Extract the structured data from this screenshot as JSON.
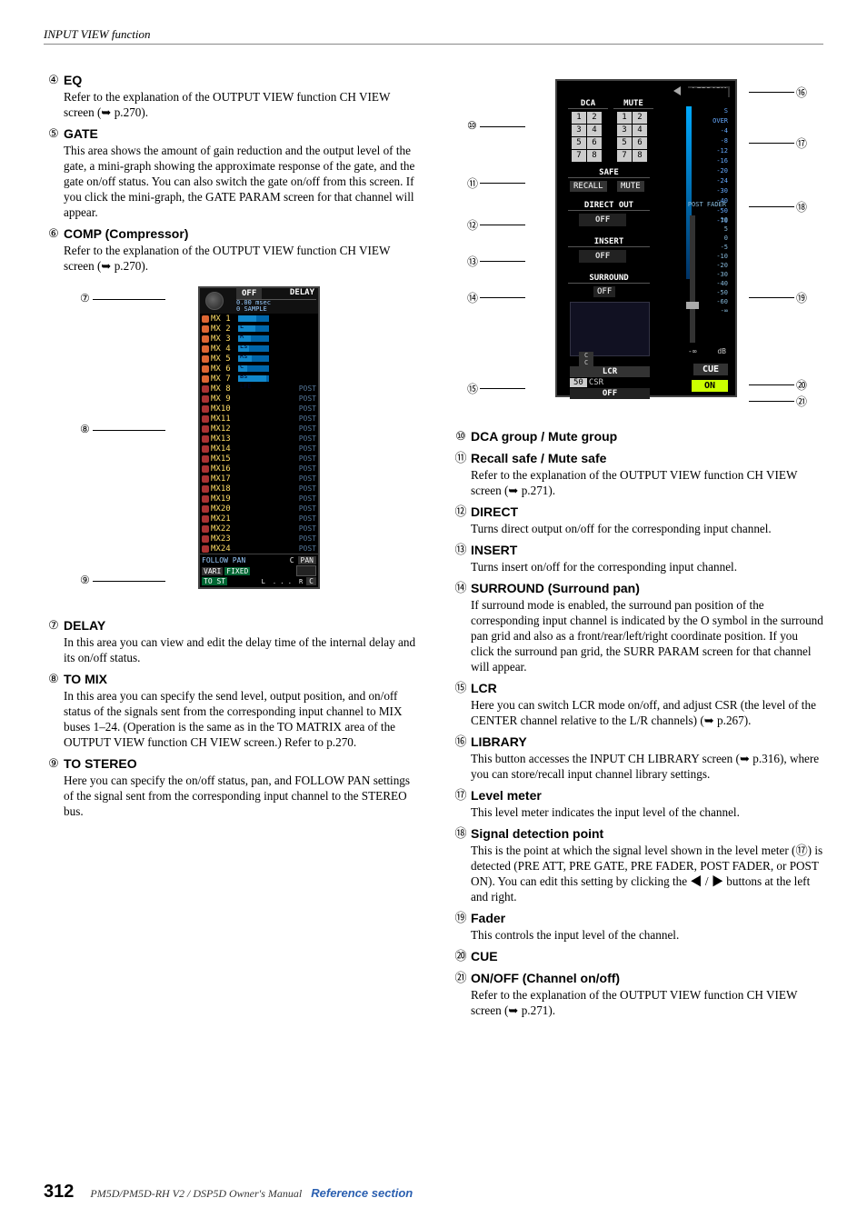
{
  "header": "INPUT VIEW function",
  "footer": {
    "page": "312",
    "manual": "PM5D/PM5D-RH V2 / DSP5D Owner's Manual",
    "section": "Reference section"
  },
  "left_items": [
    {
      "num": "④",
      "title": "EQ",
      "body": "Refer to the explanation of the OUTPUT VIEW function CH VIEW screen (➥ p.270)."
    },
    {
      "num": "⑤",
      "title": "GATE",
      "body": "This area shows the amount of gain reduction and the output level of the gate, a mini-graph showing the approximate response of the gate, and the gate on/off status. You can also switch the gate on/off from this screen. If you click the mini-graph, the GATE PARAM screen for that channel will appear."
    },
    {
      "num": "⑥",
      "title": "COMP (Compressor)",
      "body": "Refer to the explanation of the OUTPUT VIEW function CH VIEW screen (➥ p.270)."
    }
  ],
  "left_items2": [
    {
      "num": "⑦",
      "title": "DELAY",
      "body": "In this area you can view and edit the delay time of the internal delay and its on/off status."
    },
    {
      "num": "⑧",
      "title": "TO MIX",
      "body": "In this area you can specify the send level, output position, and on/off status of the signals sent from the corresponding input channel to MIX buses 1–24. (Operation is the same as in the TO MATRIX area of the OUTPUT VIEW function CH VIEW screen.) Refer to p.270."
    },
    {
      "num": "⑨",
      "title": "TO STEREO",
      "body": "Here you can specify the on/off status, pan, and FOLLOW PAN settings of the signal sent from the corresponding input channel to the STEREO bus."
    }
  ],
  "right_items": [
    {
      "num": "⑩",
      "title": "DCA group / Mute group",
      "body": ""
    },
    {
      "num": "⑪",
      "title": "Recall safe / Mute safe",
      "body": "Refer to the explanation of the OUTPUT VIEW function CH VIEW screen (➥ p.271)."
    },
    {
      "num": "⑫",
      "title": "DIRECT",
      "body": "Turns direct output on/off for the corresponding input channel."
    },
    {
      "num": "⑬",
      "title": "INSERT",
      "body": "Turns insert on/off for the corresponding input channel."
    },
    {
      "num": "⑭",
      "title": "SURROUND (Surround pan)",
      "body": "If surround mode is enabled, the surround pan position of the corresponding input channel is indicated by the O symbol in the surround pan grid and also as a front/rear/left/right coordinate position. If you click the surround pan grid, the SURR PARAM screen for that channel will appear."
    },
    {
      "num": "⑮",
      "title": "LCR",
      "body": "Here you can switch LCR mode on/off, and adjust CSR (the level of the CENTER channel relative to the L/R channels) (➥ p.267)."
    },
    {
      "num": "⑯",
      "title": "LIBRARY",
      "body": "This button accesses the INPUT CH LIBRARY screen (➥ p.316), where you can store/recall input channel library settings."
    },
    {
      "num": "⑰",
      "title": "Level meter",
      "body": "This level meter indicates the input level of the channel."
    },
    {
      "num": "⑱",
      "title": "Signal detection point",
      "body": "This is the point at which the signal level shown in the level meter (⑰) is detected (PRE ATT, PRE GATE, PRE FADER, POST FADER, or POST ON). You can edit this setting by clicking the ◀ / ▶ buttons at the left and right."
    },
    {
      "num": "⑲",
      "title": "Fader",
      "body": "This controls the input level of the channel."
    },
    {
      "num": "⑳",
      "title": "CUE",
      "body": ""
    },
    {
      "num": "㉑",
      "title": "ON/OFF (Channel on/off)",
      "body": "Refer to the explanation of the OUTPUT VIEW function CH VIEW screen (➥ p.271)."
    }
  ],
  "fig1": {
    "labels": {
      "off": "OFF",
      "delay": "DELAY",
      "msec": "msec",
      "sample": "SAMPLE",
      "val1": "0.00",
      "val2": "0"
    },
    "mx_rows": [
      {
        "n": 1,
        "lvl": 0.6,
        "letter": "L"
      },
      {
        "n": 2,
        "lvl": 0.55,
        "letter": "R"
      },
      {
        "n": 3,
        "lvl": 0.4,
        "letter": "Ls"
      },
      {
        "n": 4,
        "lvl": 0.35,
        "letter": "Rs"
      },
      {
        "n": 5,
        "lvl": 0.45,
        "letter": "C"
      },
      {
        "n": 6,
        "lvl": 0.3,
        "letter": "Bs"
      },
      {
        "n": 7,
        "lvl": 0.9,
        "letter": "LFE"
      },
      {
        "n": 8,
        "lvl": 0,
        "letter": "",
        "post": true
      },
      {
        "n": 9,
        "lvl": 0,
        "post": true
      },
      {
        "n": 10,
        "lvl": 0,
        "post": true
      },
      {
        "n": 11,
        "lvl": 0,
        "post": true
      },
      {
        "n": 12,
        "lvl": 0,
        "post": true
      },
      {
        "n": 13,
        "lvl": 0,
        "post": true
      },
      {
        "n": 14,
        "lvl": 0,
        "post": true
      },
      {
        "n": 15,
        "lvl": 0,
        "post": true
      },
      {
        "n": 16,
        "lvl": 0,
        "post": true
      },
      {
        "n": 17,
        "lvl": 0,
        "post": true
      },
      {
        "n": 18,
        "lvl": 0,
        "post": true
      },
      {
        "n": 19,
        "lvl": 0,
        "post": true
      },
      {
        "n": 20,
        "lvl": 0,
        "post": true
      },
      {
        "n": 21,
        "lvl": 0,
        "post": true
      },
      {
        "n": 22,
        "lvl": 0,
        "post": true
      },
      {
        "n": 23,
        "lvl": 0,
        "post": true
      },
      {
        "n": 24,
        "lvl": 0,
        "post": true
      }
    ],
    "bottom": {
      "follow": "FOLLOW PAN",
      "vari": "VARI",
      "fixed": "FIXED",
      "to_st": "TO ST",
      "c": "C",
      "pan": "PAN",
      "l": "L",
      "r": "R"
    },
    "callouts": {
      "c7": "⑦",
      "c8": "⑧",
      "c9": "⑨"
    }
  },
  "fig2": {
    "library": "LIBRARY",
    "dca": "DCA",
    "mute": "MUTE",
    "safe": "SAFE",
    "recall": "RECALL",
    "mute2": "MUTE",
    "direct": "DIRECT OUT",
    "off": "OFF",
    "insert": "INSERT",
    "surround": "SURROUND",
    "lcr": "LCR",
    "csr_val": "50",
    "csr": "CSR",
    "off2": "OFF",
    "cue": "CUE",
    "on": "ON",
    "post": "POST\nFADER",
    "meter_scale": [
      "S",
      "OVER",
      "-4",
      "-8",
      "-12",
      "-16",
      "-20",
      "-24",
      "-30",
      "-40",
      "-50",
      "-70"
    ],
    "fader_scale": [
      "10",
      "5",
      "0",
      "-5",
      "-10",
      "-20",
      "-30",
      "-40",
      "-50",
      "-60",
      "-∞"
    ],
    "neg_inf": "-∞",
    "db": "dB",
    "grid": [
      "1",
      "2",
      "3",
      "4",
      "5",
      "6",
      "7",
      "8"
    ],
    "callouts": {
      "c10": "⑩",
      "c11": "⑪",
      "c12": "⑫",
      "c13": "⑬",
      "c14": "⑭",
      "c15": "⑮",
      "c16": "⑯",
      "c17": "⑰",
      "c18": "⑱",
      "c19": "⑲",
      "c20": "⑳",
      "c21": "㉑"
    }
  }
}
